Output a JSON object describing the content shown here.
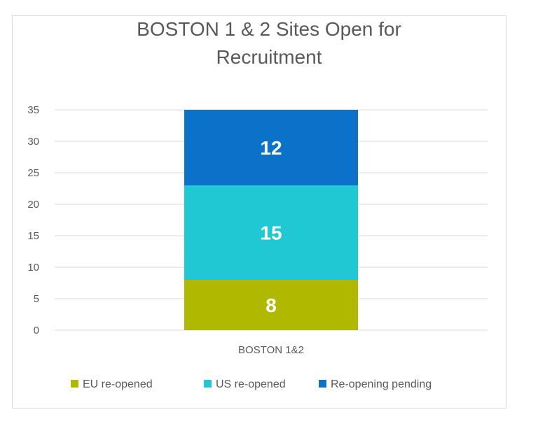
{
  "chart_data": {
    "type": "bar",
    "stacked": true,
    "title": "BOSTON 1 & 2 Sites Open for Recruitment",
    "title_lines": [
      "BOSTON 1 & 2 Sites Open for",
      "Recruitment"
    ],
    "categories": [
      "BOSTON 1&2"
    ],
    "series": [
      {
        "name": "EU re-opened",
        "values": [
          8
        ],
        "color": "#b0b800"
      },
      {
        "name": "US re-opened",
        "values": [
          15
        ],
        "color": "#1fc8d2"
      },
      {
        "name": "Re-opening pending",
        "values": [
          12
        ],
        "color": "#0a72c8"
      }
    ],
    "ylim": [
      0,
      35
    ],
    "yticks": [
      "0",
      "5",
      "10",
      "15",
      "20",
      "25",
      "30",
      "35"
    ],
    "grid": true,
    "legend_position": "bottom"
  }
}
